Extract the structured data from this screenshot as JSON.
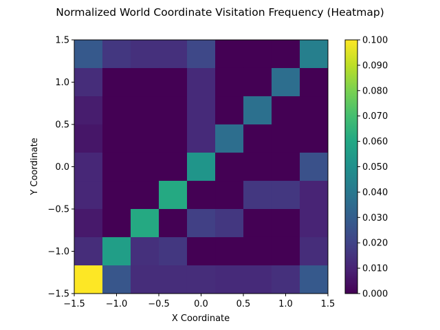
{
  "chart_data": {
    "type": "heatmap",
    "title": "Normalized World Coordinate Visitation Frequency (Heatmap)",
    "xlabel": "X Coordinate",
    "ylabel": "Y Coordinate",
    "xlim": [
      -1.5,
      1.5
    ],
    "ylim": [
      -1.5,
      1.5
    ],
    "x_edges": [
      -1.5,
      -1.1667,
      -0.8333,
      -0.5,
      -0.1667,
      0.1667,
      0.5,
      0.8333,
      1.1667,
      1.5
    ],
    "y_edges": [
      -1.5,
      -1.1667,
      -0.8333,
      -0.5,
      -0.1667,
      0.1667,
      0.5,
      0.8333,
      1.1667,
      1.5
    ],
    "values_rows_top_to_bottom": [
      [
        0.028,
        0.016,
        0.014,
        0.014,
        0.022,
        0.0,
        0.0,
        0.0,
        0.043
      ],
      [
        0.013,
        0.0,
        0.0,
        0.0,
        0.012,
        0.0,
        0.0,
        0.036,
        0.0
      ],
      [
        0.008,
        0.0,
        0.0,
        0.0,
        0.012,
        0.0,
        0.037,
        0.0,
        0.0
      ],
      [
        0.006,
        0.0,
        0.0,
        0.0,
        0.012,
        0.036,
        0.0,
        0.0,
        0.0
      ],
      [
        0.011,
        0.0,
        0.0,
        0.0,
        0.052,
        0.0,
        0.0,
        0.0,
        0.025
      ],
      [
        0.011,
        0.0,
        0.0,
        0.061,
        0.0,
        0.0,
        0.016,
        0.016,
        0.01
      ],
      [
        0.007,
        0.0,
        0.061,
        0.0,
        0.019,
        0.016,
        0.0,
        0.0,
        0.01
      ],
      [
        0.013,
        0.056,
        0.014,
        0.016,
        0.0,
        0.0,
        0.0,
        0.0,
        0.013
      ],
      [
        0.1,
        0.027,
        0.013,
        0.013,
        0.013,
        0.012,
        0.012,
        0.014,
        0.028
      ]
    ],
    "xticks": [
      -1.5,
      -1.0,
      -0.5,
      0.0,
      0.5,
      1.0,
      1.5
    ],
    "xtick_labels": [
      "−1.5",
      "−1.0",
      "−0.5",
      "0.0",
      "0.5",
      "1.0",
      "1.5"
    ],
    "yticks": [
      1.5,
      1.0,
      0.5,
      0.0,
      -0.5,
      -1.0,
      -1.5
    ],
    "ytick_labels": [
      "1.5",
      "1.0",
      "0.5",
      "0.0",
      "−0.5",
      "−1.0",
      "−1.5"
    ],
    "colorbar": {
      "colormap": "viridis",
      "vmin": 0.0,
      "vmax": 0.1,
      "ticks": [
        0.1,
        0.09,
        0.08,
        0.07,
        0.06,
        0.05,
        0.04,
        0.03,
        0.02,
        0.01,
        0.0
      ],
      "tick_labels": [
        "0.100",
        "0.090",
        "0.080",
        "0.070",
        "0.060",
        "0.050",
        "0.040",
        "0.030",
        "0.020",
        "0.010",
        "0.000"
      ]
    },
    "grid": false
  }
}
